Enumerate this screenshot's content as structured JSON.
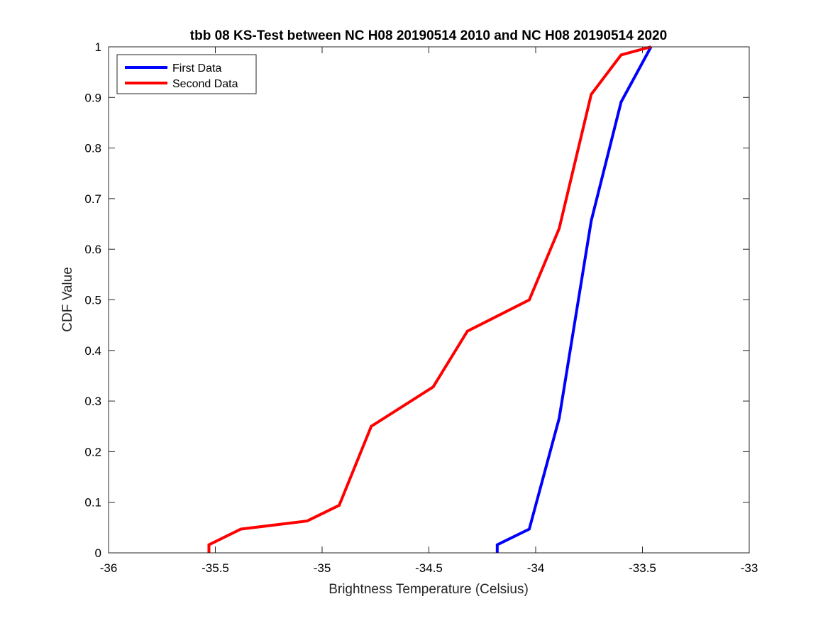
{
  "chart_data": {
    "type": "line",
    "title": "tbb 08 KS-Test between NC H08 20190514 2010 and NC H08 20190514 2020",
    "xlabel": "Brightness Temperature (Celsius)",
    "ylabel": "CDF Value",
    "xlim": [
      -36,
      -33
    ],
    "ylim": [
      0,
      1
    ],
    "xticks": [
      -36,
      -35.5,
      -35,
      -34.5,
      -34,
      -33.5,
      -33
    ],
    "xtick_labels": [
      "-36",
      "-35.5",
      "-35",
      "-34.5",
      "-34",
      "-33.5",
      "-33"
    ],
    "yticks": [
      0,
      0.1,
      0.2,
      0.3,
      0.4,
      0.5,
      0.6,
      0.7,
      0.8,
      0.9,
      1
    ],
    "ytick_labels": [
      "0",
      "0.1",
      "0.2",
      "0.3",
      "0.4",
      "0.5",
      "0.6",
      "0.7",
      "0.8",
      "0.9",
      "1"
    ],
    "grid": false,
    "legend_position": "top-left",
    "series": [
      {
        "name": "First Data",
        "color": "#0000ff",
        "x": [
          -34.18,
          -34.18,
          -34.03,
          -33.89,
          -33.74,
          -33.6,
          -33.46
        ],
        "y": [
          0,
          0.016,
          0.047,
          0.266,
          0.656,
          0.891,
          1.0
        ]
      },
      {
        "name": "Second Data",
        "color": "#ff0000",
        "x": [
          -35.53,
          -35.53,
          -35.38,
          -35.07,
          -34.92,
          -34.77,
          -34.48,
          -34.32,
          -34.03,
          -33.89,
          -33.74,
          -33.6,
          -33.46
        ],
        "y": [
          0,
          0.016,
          0.047,
          0.063,
          0.094,
          0.25,
          0.328,
          0.438,
          0.5,
          0.641,
          0.906,
          0.984,
          1.0
        ]
      }
    ]
  }
}
